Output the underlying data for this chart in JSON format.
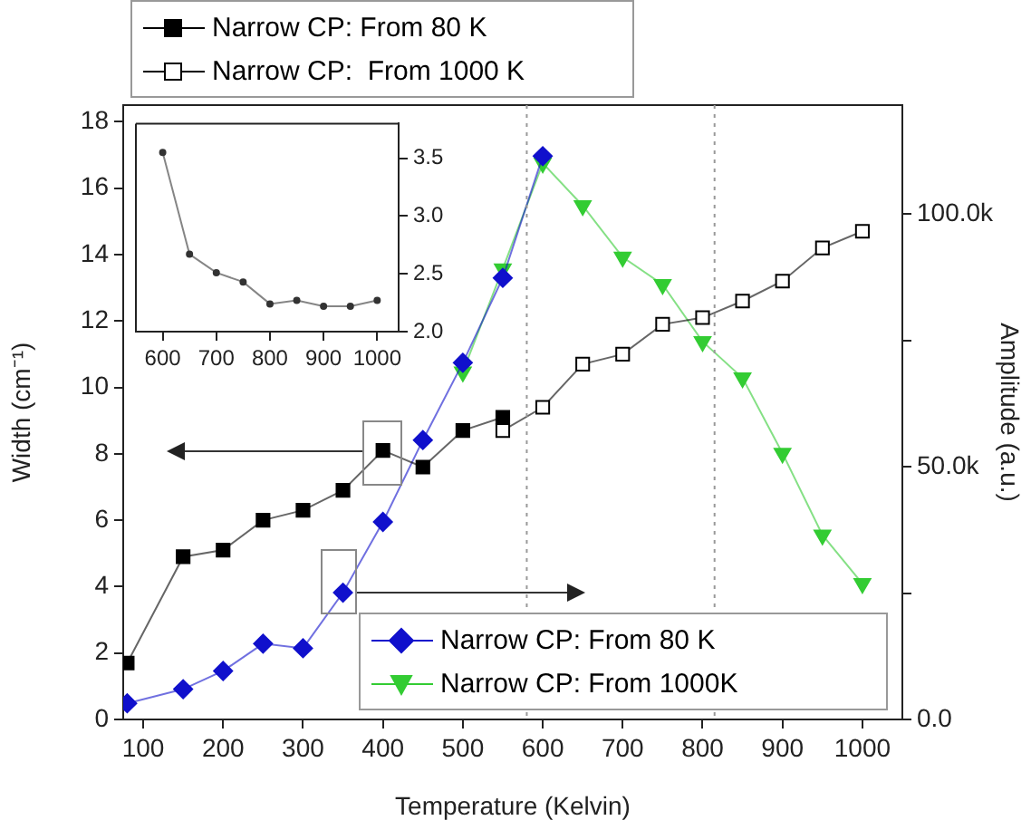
{
  "chart_data": [
    {
      "type": "line",
      "xlabel": "Temperature (Kelvin)",
      "ylabel": "Width (cm⁻¹)",
      "y2label": "Amplitude (a.u.)",
      "xlim": [
        75,
        1050
      ],
      "xticks": [
        100,
        200,
        300,
        400,
        500,
        600,
        700,
        800,
        900,
        1000
      ],
      "ylim": [
        0,
        18.5
      ],
      "yticks": [
        0,
        2,
        4,
        6,
        8,
        10,
        12,
        14,
        16,
        18
      ],
      "y2lim": [
        0,
        121600
      ],
      "y2ticks": [
        {
          "value": 0,
          "label": "0.0"
        },
        {
          "value": 25000,
          "label": null
        },
        {
          "value": 50000,
          "label": "50.0k"
        },
        {
          "value": 75000,
          "label": null
        },
        {
          "value": 100000,
          "label": "100.0k"
        }
      ],
      "grid": false,
      "legend": "top",
      "series": [
        {
          "name": "Narrow CP: From 80 K",
          "color": "#000000",
          "marker": "square",
          "x": [
            80,
            150,
            200,
            250,
            300,
            350,
            400,
            450,
            500,
            550
          ],
          "values": [
            1.7,
            4.9,
            5.1,
            6.0,
            6.3,
            6.9,
            8.1,
            7.6,
            8.7,
            9.1
          ]
        },
        {
          "name": "Narrow CP:  From 1000 K",
          "color": "#000000",
          "marker": "square",
          "x": [
            550,
            600,
            650,
            700,
            750,
            800,
            850,
            900,
            950,
            1000
          ],
          "values": [
            8.7,
            9.4,
            10.7,
            11.0,
            11.9,
            12.1,
            12.6,
            13.2,
            14.2,
            14.7
          ]
        },
        {
          "name": "Narrow CP: From 80 K",
          "color": "#1010cc",
          "marker": "diamond",
          "axis": "y2",
          "x": [
            80,
            150,
            200,
            250,
            300,
            350,
            400,
            450,
            500,
            550,
            600
          ],
          "values": [
            3200,
            6000,
            9600,
            15000,
            14100,
            25100,
            39100,
            55300,
            70600,
            87400,
            111500
          ]
        },
        {
          "name": "Narrow CP: From 1000K",
          "color": "#33cc33",
          "marker": "triangle",
          "axis": "y2",
          "x": [
            500,
            550,
            600,
            650,
            700,
            750,
            800,
            850,
            900,
            950,
            1000
          ],
          "values": [
            68800,
            89200,
            110100,
            101700,
            91500,
            86100,
            74800,
            67600,
            52700,
            36500,
            26900
          ]
        }
      ],
      "ref_lines": [
        {
          "axis": "x",
          "value": 580,
          "color": "#999999",
          "line_style": "dotted"
        },
        {
          "axis": "x",
          "value": 815,
          "color": "#999999",
          "line_style": "dotted"
        }
      ]
    },
    {
      "type": "line",
      "xlim": [
        550,
        1040
      ],
      "xticks": [
        600,
        700,
        800,
        900,
        1000
      ],
      "y2lim": [
        2.0,
        3.8
      ],
      "y2ticks": [
        {
          "value": 2.0,
          "label": "2.0"
        },
        {
          "value": 2.5,
          "label": "2.5"
        },
        {
          "value": 3.0,
          "label": "3.0"
        },
        {
          "value": 3.5,
          "label": "3.5"
        }
      ],
      "grid": false,
      "marker": "circle",
      "series": [
        {
          "color": "#333333",
          "axis": "y2",
          "x": [
            600,
            650,
            700,
            750,
            800,
            850,
            900,
            950,
            1000
          ],
          "values": [
            3.55,
            2.67,
            2.51,
            2.43,
            2.24,
            2.27,
            2.22,
            2.22,
            2.27
          ]
        }
      ]
    }
  ]
}
